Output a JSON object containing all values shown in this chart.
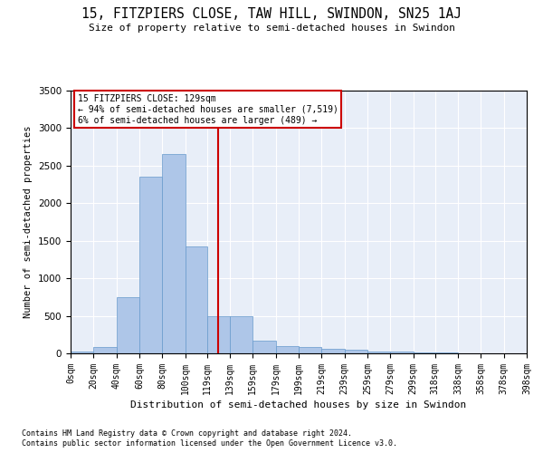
{
  "title": "15, FITZPIERS CLOSE, TAW HILL, SWINDON, SN25 1AJ",
  "subtitle": "Size of property relative to semi-detached houses in Swindon",
  "xlabel": "Distribution of semi-detached houses by size in Swindon",
  "ylabel": "Number of semi-detached properties",
  "footnote1": "Contains HM Land Registry data © Crown copyright and database right 2024.",
  "footnote2": "Contains public sector information licensed under the Open Government Licence v3.0.",
  "bar_color": "#aec6e8",
  "bar_edge_color": "#6699cc",
  "background_color": "#e8eef8",
  "annotation_box_color": "#cc0000",
  "vline_color": "#cc0000",
  "property_size": 129,
  "annotation_title": "15 FITZPIERS CLOSE: 129sqm",
  "annotation_line1": "← 94% of semi-detached houses are smaller (7,519)",
  "annotation_line2": "6% of semi-detached houses are larger (489) →",
  "bin_labels": [
    "0sqm",
    "20sqm",
    "40sqm",
    "60sqm",
    "80sqm",
    "100sqm",
    "119sqm",
    "139sqm",
    "159sqm",
    "179sqm",
    "199sqm",
    "219sqm",
    "239sqm",
    "259sqm",
    "279sqm",
    "299sqm",
    "318sqm",
    "338sqm",
    "358sqm",
    "378sqm",
    "398sqm"
  ],
  "bin_edges": [
    0,
    20,
    40,
    60,
    80,
    100,
    119,
    139,
    159,
    179,
    199,
    219,
    239,
    259,
    279,
    299,
    318,
    338,
    358,
    378,
    398
  ],
  "bar_heights": [
    30,
    80,
    750,
    2350,
    2650,
    1420,
    500,
    500,
    170,
    100,
    80,
    60,
    50,
    30,
    20,
    10,
    8,
    5,
    3,
    1,
    0
  ],
  "ylim": [
    0,
    3500
  ],
  "yticks": [
    0,
    500,
    1000,
    1500,
    2000,
    2500,
    3000,
    3500
  ]
}
